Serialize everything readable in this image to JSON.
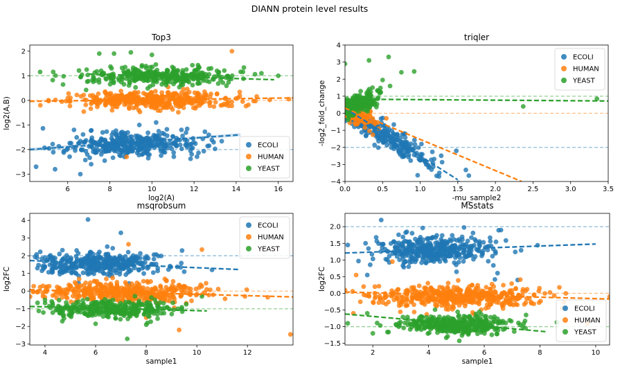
{
  "figure": {
    "title": "DIANN protein level results",
    "colors": {
      "ECOLI": "#1f77b4",
      "HUMAN": "#ff7f0e",
      "YEAST": "#2ca02c"
    }
  },
  "chart_data": [
    {
      "id": "top3",
      "type": "scatter",
      "title": "Top3",
      "xlabel": "log2(A)",
      "ylabel": "log2(A,B)",
      "xlim": [
        4.2,
        16.7
      ],
      "ylim": [
        -3.3,
        2.25
      ],
      "xticks": [
        6,
        8,
        10,
        12,
        14,
        16
      ],
      "yticks": [
        -3,
        -2,
        -1,
        0,
        1,
        2
      ],
      "legend": {
        "position": "lower-right",
        "entries": [
          "ECOLI",
          "HUMAN",
          "YEAST"
        ]
      },
      "reference_lines": [
        {
          "series": "ECOLI",
          "y": -2
        },
        {
          "series": "HUMAN",
          "y": 0
        },
        {
          "series": "YEAST",
          "y": 1
        }
      ],
      "series": [
        {
          "name": "ECOLI",
          "cluster": {
            "x_center": 9.0,
            "x_spread": 1.5,
            "y_center": -1.8,
            "y_spread": 0.25,
            "count": 380
          },
          "fit": {
            "x": [
              4.2,
              14.2
            ],
            "y": [
              -2.0,
              -1.4
            ],
            "ci_band": true
          },
          "outliers": [
            [
              4.5,
              -2.7
            ],
            [
              5.4,
              -2.8
            ],
            [
              6.6,
              -3.0
            ],
            [
              8.7,
              -2.3
            ],
            [
              10.2,
              -0.9
            ],
            [
              11.4,
              -1.2
            ],
            [
              12.7,
              -1.4
            ],
            [
              9.4,
              -1.0
            ],
            [
              6.3,
              -1.2
            ]
          ]
        },
        {
          "name": "HUMAN",
          "cluster": {
            "x_center": 10.0,
            "x_spread": 2.0,
            "y_center": 0.0,
            "y_spread": 0.18,
            "count": 420
          },
          "fit": {
            "x": [
              4.2,
              16.7
            ],
            "y": [
              -0.04,
              0.1
            ],
            "ci_band": false
          },
          "outliers": [
            [
              13.8,
              2.0
            ],
            [
              8.8,
              -2.3
            ],
            [
              4.7,
              -0.2
            ],
            [
              16.5,
              0.05
            ],
            [
              12.5,
              0.35
            ]
          ]
        },
        {
          "name": "YEAST",
          "cluster": {
            "x_center": 10.5,
            "x_spread": 1.8,
            "y_center": 1.0,
            "y_spread": 0.18,
            "count": 340
          },
          "fit": {
            "x": [
              7.0,
              15.8
            ],
            "y": [
              1.07,
              0.84
            ],
            "ci_band": false
          },
          "outliers": [
            [
              7.5,
              1.9
            ],
            [
              8.2,
              1.9
            ],
            [
              9.0,
              1.95
            ],
            [
              10.0,
              1.85
            ],
            [
              15.2,
              1.1
            ],
            [
              16.0,
              1.0
            ],
            [
              6.9,
              1.25
            ]
          ]
        }
      ]
    },
    {
      "id": "triqler",
      "type": "scatter",
      "title": "triqler",
      "xlabel": "-mu_sample2",
      "ylabel": "-log2_fold_change",
      "xlim": [
        0.0,
        3.5
      ],
      "ylim": [
        -4.0,
        4.0
      ],
      "xticks": [
        0.0,
        0.5,
        1.0,
        1.5,
        2.0,
        2.5,
        3.0,
        3.5
      ],
      "yticks": [
        -4,
        -3,
        -2,
        -1,
        0,
        1,
        2,
        3,
        4
      ],
      "legend": {
        "position": "top-right",
        "entries": [
          "ECOLI",
          "HUMAN",
          "YEAST"
        ]
      },
      "reference_lines": [
        {
          "series": "ECOLI",
          "y": -2
        },
        {
          "series": "HUMAN",
          "y": 0
        },
        {
          "series": "YEAST",
          "y": 1
        }
      ],
      "series": [
        {
          "name": "ECOLI",
          "cluster": {
            "x_center": 0.55,
            "x_spread": 0.35,
            "slope": -2.6,
            "y_spread": 0.35,
            "count": 260
          },
          "fit": {
            "x": [
              0.0,
              1.5
            ],
            "y": [
              0.3,
              -3.9
            ],
            "ci_band": false
          },
          "outliers": [
            [
              1.48,
              -2.2
            ],
            [
              1.25,
              -3.7
            ],
            [
              1.15,
              -3.3
            ]
          ]
        },
        {
          "name": "HUMAN",
          "cluster": {
            "x_center": 0.15,
            "x_spread": 0.12,
            "slope": -1.5,
            "y_spread": 0.25,
            "count": 150
          },
          "fit": {
            "x": [
              0.0,
              2.35
            ],
            "y": [
              0.3,
              -4.0
            ],
            "ci_band": false
          },
          "outliers": [
            [
              0.55,
              -0.3
            ],
            [
              0.45,
              -0.9
            ]
          ]
        },
        {
          "name": "YEAST",
          "cluster": {
            "x_center": 0.18,
            "x_spread": 0.14,
            "slope": 2.2,
            "y_spread": 0.3,
            "count": 200
          },
          "fit": {
            "x": [
              0.0,
              3.5
            ],
            "y": [
              0.83,
              0.72
            ],
            "ci_band": false
          },
          "outliers": [
            [
              0.0,
              2.9
            ],
            [
              0.32,
              3.1
            ],
            [
              0.58,
              3.3
            ],
            [
              0.75,
              2.4
            ],
            [
              0.92,
              2.45
            ],
            [
              2.37,
              0.4
            ],
            [
              3.35,
              0.85
            ],
            [
              0.5,
              1.95
            ],
            [
              0.6,
              1.6
            ]
          ]
        }
      ]
    },
    {
      "id": "msqrobsum",
      "type": "scatter",
      "title": "msqrobsum",
      "xlabel": "sample1",
      "ylabel": "log2FC",
      "xlim": [
        3.4,
        13.8
      ],
      "ylim": [
        -3.05,
        4.4
      ],
      "xticks": [
        4,
        6,
        8,
        10,
        12
      ],
      "yticks": [
        -3,
        -2,
        -1,
        0,
        1,
        2,
        3,
        4
      ],
      "legend": {
        "position": "top-right",
        "entries": [
          "ECOLI",
          "HUMAN",
          "YEAST"
        ]
      },
      "reference_lines": [
        {
          "series": "ECOLI",
          "y": 2
        },
        {
          "series": "HUMAN",
          "y": 0
        },
        {
          "series": "YEAST",
          "y": -1
        }
      ],
      "series": [
        {
          "name": "ECOLI",
          "cluster": {
            "x_center": 6.0,
            "x_spread": 1.3,
            "y_center": 1.55,
            "y_spread": 0.3,
            "count": 380
          },
          "fit": {
            "x": [
              3.4,
              11.7
            ],
            "y": [
              1.73,
              1.22
            ],
            "ci_band": false
          },
          "outliers": [
            [
              5.7,
              4.05
            ],
            [
              7.0,
              3.3
            ],
            [
              3.7,
              1.3
            ],
            [
              9.5,
              1.1
            ],
            [
              10.6,
              1.2
            ]
          ]
        },
        {
          "name": "HUMAN",
          "cluster": {
            "x_center": 7.0,
            "x_spread": 1.7,
            "y_center": -0.05,
            "y_spread": 0.3,
            "count": 430
          },
          "fit": {
            "x": [
              3.4,
              13.8
            ],
            "y": [
              0.08,
              -0.33
            ],
            "ci_band": false
          },
          "outliers": [
            [
              7.3,
              2.65
            ],
            [
              10.2,
              2.35
            ],
            [
              9.3,
              -2.2
            ],
            [
              13.7,
              -2.45
            ],
            [
              11.9,
              -0.3
            ],
            [
              12.8,
              -0.35
            ],
            [
              8.0,
              -1.5
            ]
          ]
        },
        {
          "name": "YEAST",
          "cluster": {
            "x_center": 6.5,
            "x_spread": 1.3,
            "y_center": -1.0,
            "y_spread": 0.25,
            "count": 330
          },
          "fit": {
            "x": [
              3.4,
              10.4
            ],
            "y": [
              -0.87,
              -1.12
            ],
            "ci_band": false
          },
          "outliers": [
            [
              7.25,
              -2.7
            ],
            [
              8.0,
              -1.9
            ],
            [
              6.0,
              -1.85
            ],
            [
              4.0,
              -0.5
            ],
            [
              10.2,
              -0.3
            ]
          ]
        }
      ]
    },
    {
      "id": "msstats",
      "type": "scatter",
      "title": "MSstats",
      "xlabel": "sample1",
      "ylabel": "log2FC",
      "xlim": [
        1.0,
        10.5
      ],
      "ylim": [
        -1.55,
        2.4
      ],
      "xticks": [
        2,
        4,
        6,
        8,
        10
      ],
      "yticks": [
        -1.5,
        -1.0,
        -0.5,
        0.0,
        0.5,
        1.0,
        1.5,
        2.0
      ],
      "legend": {
        "position": "lower-right",
        "entries": [
          "ECOLI",
          "HUMAN",
          "YEAST"
        ]
      },
      "reference_lines": [
        {
          "series": "ECOLI",
          "y": 2
        },
        {
          "series": "HUMAN",
          "y": 0
        },
        {
          "series": "YEAST",
          "y": -1
        }
      ],
      "series": [
        {
          "name": "ECOLI",
          "cluster": {
            "x_center": 4.2,
            "x_spread": 1.0,
            "y_center": 1.3,
            "y_spread": 0.2,
            "count": 400
          },
          "fit": {
            "x": [
              1.0,
              10.0
            ],
            "y": [
              1.21,
              1.48
            ],
            "ci_band": false
          },
          "outliers": [
            [
              2.3,
              2.2
            ],
            [
              1.1,
              1.45
            ],
            [
              1.8,
              0.55
            ],
            [
              7.2,
              0.4
            ],
            [
              6.6,
              1.9
            ]
          ]
        },
        {
          "name": "HUMAN",
          "cluster": {
            "x_center": 5.0,
            "x_spread": 1.5,
            "y_center": -0.1,
            "y_spread": 0.17,
            "count": 460
          },
          "fit": {
            "x": [
              1.0,
              10.5
            ],
            "y": [
              0.04,
              -0.17
            ],
            "ci_band": false
          },
          "outliers": [
            [
              1.0,
              0.1
            ],
            [
              1.4,
              0.55
            ],
            [
              1.3,
              -0.6
            ],
            [
              8.8,
              -0.45
            ],
            [
              9.7,
              -0.9
            ],
            [
              10.5,
              -0.1
            ],
            [
              2.7,
              0.95
            ]
          ]
        },
        {
          "name": "YEAST",
          "cluster": {
            "x_center": 5.0,
            "x_spread": 1.0,
            "y_center": -0.93,
            "y_spread": 0.13,
            "count": 380
          },
          "fit": {
            "x": [
              1.0,
              8.2
            ],
            "y": [
              -0.62,
              -1.15
            ],
            "ci_band": false
          },
          "outliers": [
            [
              1.1,
              -0.9
            ],
            [
              1.8,
              -0.6
            ],
            [
              2.0,
              -1.2
            ],
            [
              7.5,
              -0.65
            ]
          ]
        }
      ]
    }
  ]
}
